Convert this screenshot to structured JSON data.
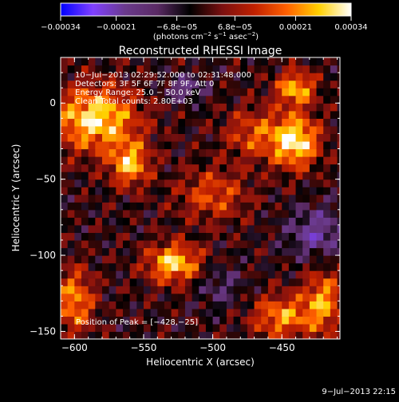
{
  "chart_data": {
    "type": "heatmap",
    "title": "Reconstructed RHESSI Image",
    "xlabel": "Heliocentric X (arcsec)",
    "ylabel": "Heliocentric Y (arcsec)",
    "xlim": [
      -610,
      -408
    ],
    "ylim": [
      -155,
      30
    ],
    "x_ticks": [
      -600,
      -550,
      -500,
      -450
    ],
    "x_tick_labels": [
      "−600",
      "−550",
      "−500",
      "−450"
    ],
    "y_ticks": [
      -150,
      -100,
      -50,
      0
    ],
    "y_tick_labels": [
      "−150",
      "−100",
      "−50",
      "0"
    ],
    "colorbar": {
      "range": [
        -0.00034,
        0.00034
      ],
      "ticks": [
        -0.00034,
        -0.00021,
        -6.8e-05,
        6.8e-05,
        0.00021,
        0.00034
      ],
      "tick_labels": [
        "−0.00034",
        "−0.00021",
        "−6.8e−05",
        "6.8e−05",
        "0.00021",
        "0.00034"
      ],
      "unit_parts": [
        "(photons cm",
        "−2",
        " s",
        "−1",
        " asec",
        "−2",
        ")"
      ]
    },
    "annotations": [
      "10−Jul−2013 02:29:52.000 to 02:31:48.000",
      "Detectors: 3F 5F 6F 7F 8F 9F, Att 0",
      "Energy Range: 25.0 − 50.0 keV",
      "Clean     Total counts: 2.80E+03"
    ],
    "peak_label": "Position of Peak = [−428,−25]",
    "peak_position": [
      -428,
      -25
    ],
    "sources": [
      {
        "x": -440,
        "y": -25,
        "amp": 1.0,
        "sx": 12,
        "sy": 12
      },
      {
        "x": -440,
        "y": 10,
        "amp": 0.8,
        "sx": 10,
        "sy": 8
      },
      {
        "x": -585,
        "y": -10,
        "amp": 0.95,
        "sx": 22,
        "sy": 15
      },
      {
        "x": -560,
        "y": -40,
        "amp": 0.8,
        "sx": 10,
        "sy": 10
      },
      {
        "x": -528,
        "y": -105,
        "amp": 0.9,
        "sx": 14,
        "sy": 9
      },
      {
        "x": -500,
        "y": -60,
        "amp": 0.5,
        "sx": 18,
        "sy": 12
      },
      {
        "x": -600,
        "y": -130,
        "amp": 0.7,
        "sx": 10,
        "sy": 15
      },
      {
        "x": -470,
        "y": -20,
        "amp": 0.5,
        "sx": 15,
        "sy": 12
      },
      {
        "x": -450,
        "y": -140,
        "amp": 0.7,
        "sx": 15,
        "sy": 10
      },
      {
        "x": -420,
        "y": -130,
        "amp": 0.7,
        "sx": 10,
        "sy": 15
      },
      {
        "x": -520,
        "y": 10,
        "amp": -0.45,
        "sx": 10,
        "sy": 6
      },
      {
        "x": -425,
        "y": -85,
        "amp": -0.5,
        "sx": 15,
        "sy": 12
      },
      {
        "x": -495,
        "y": -120,
        "amp": -0.3,
        "sx": 12,
        "sy": 10
      }
    ],
    "colormap": [
      "#0000ff",
      "#8040ff",
      "#6a3a8c",
      "#5a2a64",
      "#000000",
      "#7a1010",
      "#c02000",
      "#ff6000",
      "#ffd000",
      "#ffffff"
    ]
  },
  "footer": {
    "timestamp": "9−Jul−2013 22:15"
  }
}
